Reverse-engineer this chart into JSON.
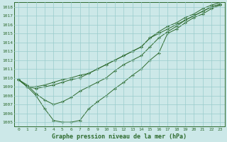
{
  "title": "Graphe pression niveau de la mer (hPa)",
  "xlabel_hours": [
    0,
    1,
    2,
    3,
    4,
    5,
    6,
    7,
    8,
    9,
    10,
    11,
    12,
    13,
    14,
    15,
    16,
    17,
    18,
    19,
    20,
    21,
    22,
    23
  ],
  "ylim": [
    1004.5,
    1018.5
  ],
  "yticks": [
    1005,
    1006,
    1007,
    1008,
    1009,
    1010,
    1011,
    1012,
    1013,
    1014,
    1015,
    1016,
    1017,
    1018
  ],
  "bg_color": "#cce8e8",
  "grid_color": "#99cccc",
  "line_color": "#2d6a2d",
  "title_color": "#2d6a2d",
  "line1": [
    1009.8,
    1009.0,
    1009.0,
    1009.2,
    1009.5,
    1009.8,
    1010.0,
    1010.3,
    1010.5,
    1011.0,
    1011.5,
    1012.0,
    1012.5,
    1013.0,
    1013.5,
    1014.5,
    1015.0,
    1015.5,
    1016.0,
    1016.5,
    1017.0,
    1017.5,
    1018.0,
    1018.3
  ],
  "line2": [
    1009.8,
    1009.0,
    1008.8,
    1009.0,
    1009.2,
    1009.5,
    1009.8,
    1010.0,
    1010.5,
    1011.0,
    1011.5,
    1012.0,
    1012.5,
    1013.0,
    1013.5,
    1014.5,
    1015.2,
    1015.8,
    1016.2,
    1016.8,
    1017.2,
    1017.8,
    1018.2,
    1018.5
  ],
  "line3": [
    1009.8,
    1009.2,
    1008.2,
    1007.5,
    1007.0,
    1007.3,
    1007.8,
    1008.5,
    1009.0,
    1009.5,
    1010.0,
    1010.8,
    1011.5,
    1012.0,
    1012.5,
    1013.5,
    1014.5,
    1015.2,
    1015.8,
    1016.5,
    1017.0,
    1017.5,
    1018.0,
    1018.3
  ],
  "line4": [
    1009.8,
    1009.0,
    1008.0,
    1006.5,
    1005.2,
    1005.0,
    1005.0,
    1005.2,
    1006.5,
    1007.3,
    1008.0,
    1008.8,
    1009.5,
    1010.3,
    1011.0,
    1012.0,
    1012.8,
    1015.0,
    1015.5,
    1016.2,
    1016.8,
    1017.2,
    1017.8,
    1018.2
  ]
}
